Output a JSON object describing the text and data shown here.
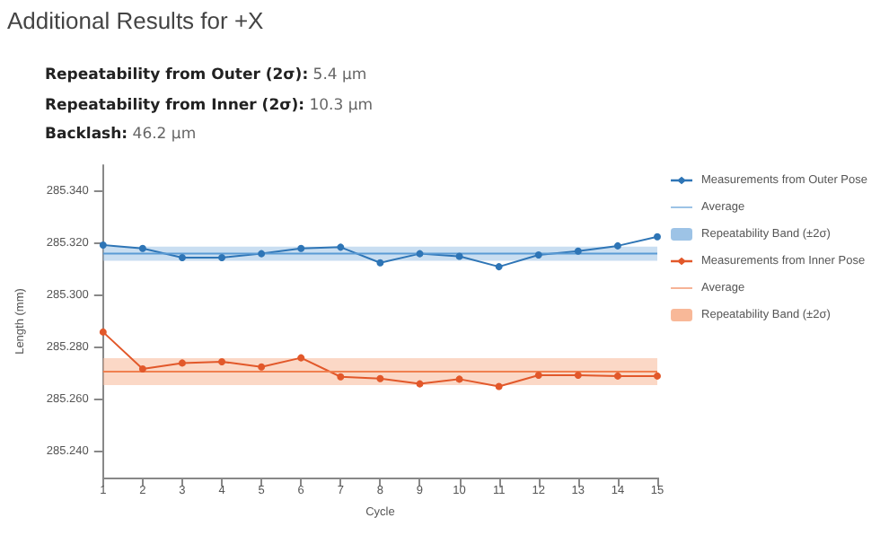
{
  "chart_data": {
    "type": "line",
    "title": "Additional Results for +X",
    "annotations": [
      "Repeatability from Outer (2σ): 5.4 μm",
      "Repeatability from Inner (2σ): 10.3 μm",
      "Backlash: 46.2 μm"
    ],
    "xlabel": "Cycle",
    "ylabel": "Length (mm)",
    "x": [
      1,
      2,
      3,
      4,
      5,
      6,
      7,
      8,
      9,
      10,
      11,
      12,
      13,
      14,
      15
    ],
    "series": [
      {
        "name": "Measurements from Outer Pose",
        "color": "#2e75b6",
        "marker": "circle",
        "values": [
          285.3193,
          285.318,
          285.3145,
          285.3145,
          285.316,
          285.318,
          285.3185,
          285.3125,
          285.316,
          285.315,
          285.311,
          285.3155,
          285.317,
          285.319,
          285.3225
        ]
      },
      {
        "name": "Average",
        "color": "#5b9bd5",
        "marker": "none",
        "values": [
          285.316,
          285.316,
          285.316,
          285.316,
          285.316,
          285.316,
          285.316,
          285.316,
          285.316,
          285.316,
          285.316,
          285.316,
          285.316,
          285.316,
          285.316
        ]
      },
      {
        "name": "Measurements from Inner Pose",
        "color": "#e2582a",
        "marker": "circle",
        "values": [
          285.2859,
          285.2717,
          285.274,
          285.2745,
          285.2725,
          285.276,
          285.2687,
          285.268,
          285.266,
          285.2678,
          285.265,
          285.2693,
          285.2693,
          285.269,
          285.269
        ]
      },
      {
        "name": "Average",
        "color": "#f08050",
        "marker": "none",
        "values": [
          285.2707,
          285.2707,
          285.2707,
          285.2707,
          285.2707,
          285.2707,
          285.2707,
          285.2707,
          285.2707,
          285.2707,
          285.2707,
          285.2707,
          285.2707,
          285.2707,
          285.2707
        ]
      }
    ],
    "bands": [
      {
        "axis": "y",
        "from": 285.3133,
        "to": 285.3187,
        "label": "Repeatability Band (±2σ)",
        "color": "#9dc3e6"
      },
      {
        "axis": "y",
        "from": 285.2655,
        "to": 285.2759,
        "label": "Repeatability Band (±2σ)",
        "color": "#f8b898"
      }
    ],
    "xlim": [
      1,
      15
    ],
    "xticks": [
      1,
      2,
      3,
      4,
      5,
      6,
      7,
      8,
      9,
      10,
      11,
      12,
      13,
      14,
      15
    ],
    "ylim": [
      285.23,
      285.35
    ],
    "yticks": [
      {
        "value": 285.24,
        "label": "285.240"
      },
      {
        "value": 285.26,
        "label": "285.260"
      },
      {
        "value": 285.28,
        "label": "285.280"
      },
      {
        "value": 285.3,
        "label": "285.300"
      },
      {
        "value": 285.32,
        "label": "285.320"
      },
      {
        "value": 285.34,
        "label": "285.340"
      }
    ],
    "grid": false,
    "legend": "right",
    "line_style": "solid"
  }
}
